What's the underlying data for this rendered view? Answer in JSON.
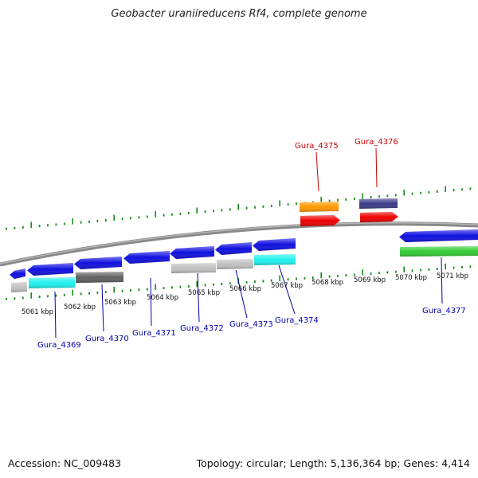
{
  "title": "Geobacter uraniireducens Rf4, complete genome",
  "footer": {
    "accession": "Accession: NC_009483",
    "topology": "Topology: circular; Length: 5,136,364 bp; Genes: 4,414"
  },
  "colors": {
    "backbone": "#888888",
    "ticks": "#1a8a1a",
    "label_blue": "#0000aa",
    "label_red": "#cc0000"
  },
  "kbp_labels": [
    "5061 kbp",
    "5062 kbp",
    "5063 kbp",
    "5064 kbp",
    "5065 kbp",
    "5066 kbp",
    "5067 kbp",
    "5068 kbp",
    "5069 kbp",
    "5070 kbp",
    "5071 kbp"
  ],
  "gene_labels": [
    {
      "text": "Gura_4369",
      "color": "blue"
    },
    {
      "text": "Gura_4370",
      "color": "blue"
    },
    {
      "text": "Gura_4371",
      "color": "blue"
    },
    {
      "text": "Gura_4372",
      "color": "blue"
    },
    {
      "text": "Gura_4373",
      "color": "blue"
    },
    {
      "text": "Gura_4374",
      "color": "blue"
    },
    {
      "text": "Gura_4375",
      "color": "red"
    },
    {
      "text": "Gura_4376",
      "color": "red"
    },
    {
      "text": "Gura_4377",
      "color": "blue"
    }
  ],
  "features": [
    {
      "name": "gene-a",
      "color": "#1010e0",
      "dir": "left"
    },
    {
      "name": "gene-b",
      "color": "#1010e0",
      "dir": "left"
    },
    {
      "name": "gene-c",
      "color": "#1010e0",
      "dir": "left"
    },
    {
      "name": "gene-d",
      "color": "#1010e0",
      "dir": "left"
    },
    {
      "name": "gene-e",
      "color": "#1010e0",
      "dir": "left"
    },
    {
      "name": "gene-f",
      "color": "#1010e0",
      "dir": "left"
    },
    {
      "name": "gene-g",
      "color": "#1010e0",
      "dir": "left"
    },
    {
      "name": "gene-h",
      "color": "#1010e0",
      "dir": "left"
    },
    {
      "name": "cds-1",
      "color": "#c0c0c0",
      "dir": "none"
    },
    {
      "name": "cds-2",
      "color": "#20f0f0",
      "dir": "none"
    },
    {
      "name": "cds-3",
      "color": "#606060",
      "dir": "none"
    },
    {
      "name": "cds-4",
      "color": "#c0c0c0",
      "dir": "none"
    },
    {
      "name": "cds-5",
      "color": "#c0c0c0",
      "dir": "none"
    },
    {
      "name": "cds-6",
      "color": "#20f0f0",
      "dir": "none"
    },
    {
      "name": "orange-gene",
      "color": "#ff9900",
      "dir": "none"
    },
    {
      "name": "red-gene-1",
      "color": "#ee0000",
      "dir": "right"
    },
    {
      "name": "navy-gene",
      "color": "#3a3a8a",
      "dir": "none"
    },
    {
      "name": "red-gene-2",
      "color": "#ee0000",
      "dir": "right"
    },
    {
      "name": "green-gene",
      "color": "#33cc33",
      "dir": "none"
    }
  ]
}
